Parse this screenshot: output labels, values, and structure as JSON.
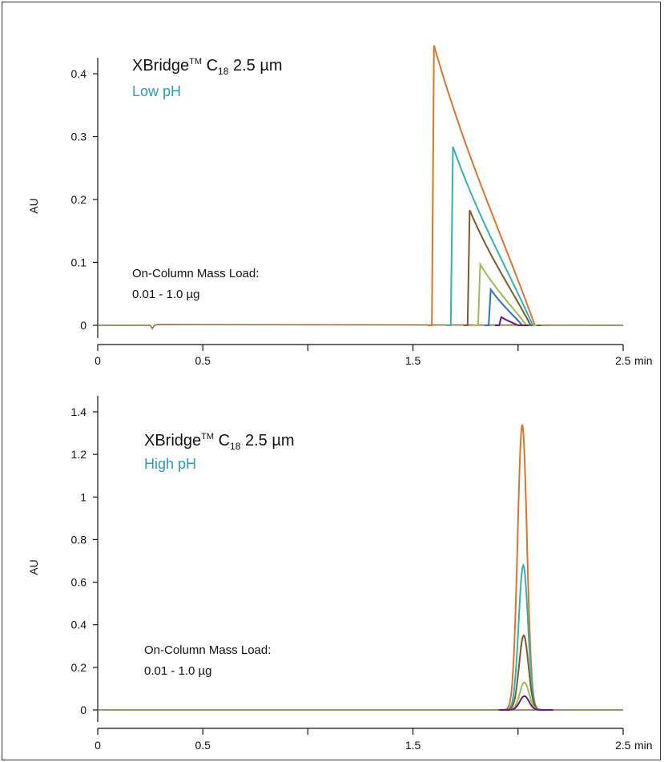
{
  "chart_data": [
    {
      "type": "line",
      "title_main": "XBridge",
      "title_tm": "TM",
      "title_c": "C",
      "title_sub": "18",
      "title_rest": "2.5 µm",
      "subtitle": "Low pH",
      "subtitle_color": "#2a9bb8",
      "note_line1": "On-Column Mass Load:",
      "note_line2": "0.01 - 1.0 µg",
      "ylabel": "AU",
      "x_unit": "min",
      "xlim": [
        0,
        2.5
      ],
      "ylim": [
        -0.03,
        0.47
      ],
      "x_ticks": [
        0,
        0.5,
        1.5,
        2.5
      ],
      "x_tick_labels": [
        "0",
        "0.5",
        "1.5",
        "2.5"
      ],
      "x_tick_marks": [
        0,
        0.5,
        1,
        1.5,
        2,
        2.5
      ],
      "y_ticks": [
        0,
        0.1,
        0.2,
        0.3,
        0.4
      ],
      "y_tick_labels": [
        "0",
        "0.1",
        "0.2",
        "0.3",
        "0.4"
      ],
      "peak_shape": "triangular",
      "series": [
        {
          "color": "#d8762e",
          "start": 1.59,
          "apex": 0.445,
          "end": 2.08
        },
        {
          "color": "#38b0b0",
          "start": 1.68,
          "apex": 0.284,
          "end": 2.07
        },
        {
          "color": "#7a5a2e",
          "start": 1.76,
          "apex": 0.183,
          "end": 2.06
        },
        {
          "color": "#9cbb52",
          "start": 1.81,
          "apex": 0.097,
          "end": 2.04
        },
        {
          "color": "#2f6fd0",
          "start": 1.86,
          "apex": 0.057,
          "end": 2.02
        },
        {
          "color": "#6a1b7a",
          "start": 1.91,
          "apex": 0.013,
          "end": 2.0
        }
      ]
    },
    {
      "type": "line",
      "title_main": "XBridge",
      "title_tm": "TM",
      "title_c": "C",
      "title_sub": "18",
      "title_rest": "2.5 µm",
      "subtitle": "High pH",
      "subtitle_color": "#2a9bb8",
      "note_line1": "On-Column Mass Load:",
      "note_line2": "0.01 - 1.0 µg",
      "ylabel": "AU",
      "x_unit": "min",
      "xlim": [
        0,
        2.5
      ],
      "ylim": [
        -0.1,
        1.42
      ],
      "x_ticks": [
        0,
        0.5,
        1.5,
        2.5
      ],
      "x_tick_labels": [
        "0",
        "0.5",
        "1.5",
        "2.5"
      ],
      "x_tick_marks": [
        0,
        0.5,
        1,
        1.5,
        2,
        2.5
      ],
      "y_ticks": [
        0,
        0.2,
        0.4,
        0.6,
        0.8,
        1,
        1.2,
        1.4
      ],
      "y_tick_labels": [
        "0",
        "0.2",
        "0.4",
        "0.6",
        "0.8",
        "1",
        "1.2",
        "1.4"
      ],
      "peak_shape": "gaussian",
      "series": [
        {
          "color": "#d8762e",
          "center": 2.02,
          "apex": 1.34
        },
        {
          "color": "#38b0b0",
          "center": 2.025,
          "apex": 0.68
        },
        {
          "color": "#7a5a2e",
          "center": 2.027,
          "apex": 0.35
        },
        {
          "color": "#9cbb52",
          "center": 2.03,
          "apex": 0.13
        },
        {
          "color": "#6a1b7a",
          "center": 2.03,
          "apex": 0.065
        }
      ]
    }
  ]
}
